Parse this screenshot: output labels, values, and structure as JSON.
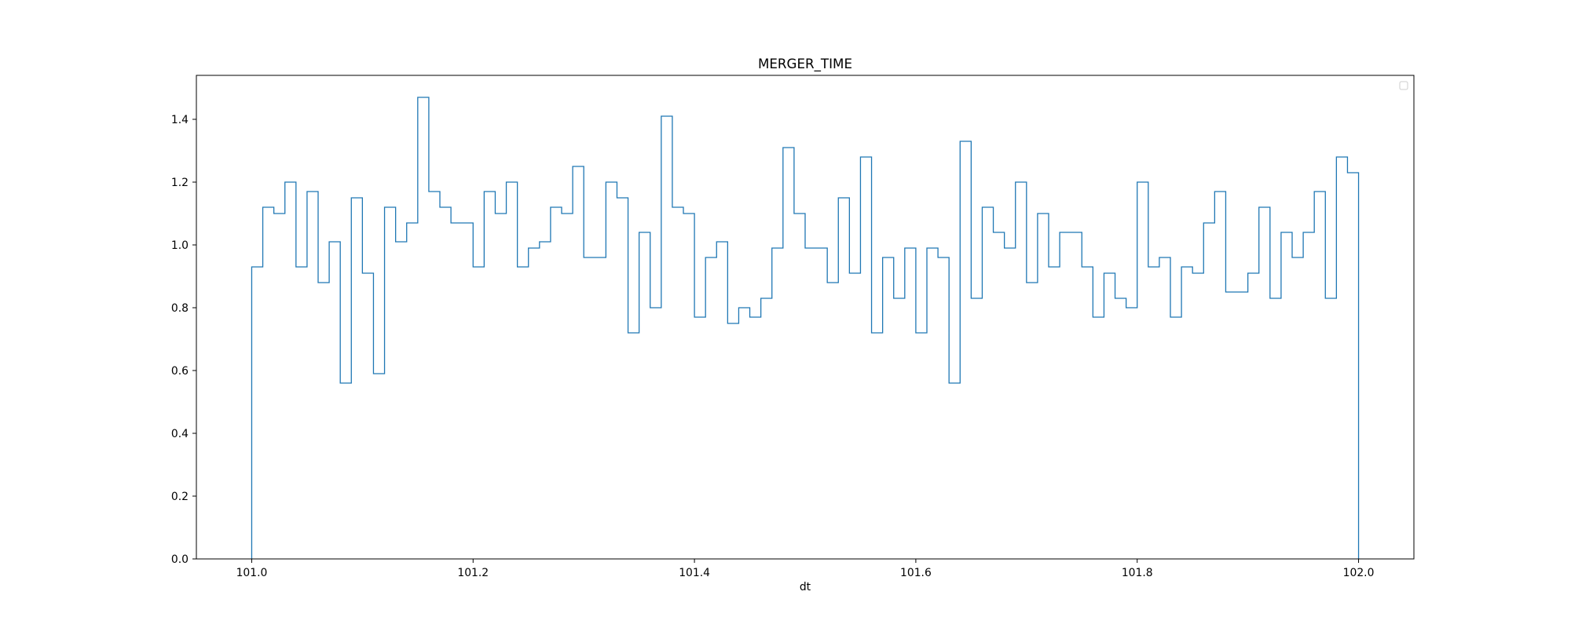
{
  "chart_data": {
    "type": "histogram-step",
    "title": "MERGER_TIME",
    "xlabel": "dt",
    "ylabel": "",
    "xlim": [
      100.95,
      102.05
    ],
    "ylim": [
      0.0,
      1.54
    ],
    "x_ticks": [
      {
        "value": 101.0,
        "label": "101.0"
      },
      {
        "value": 101.2,
        "label": "101.2"
      },
      {
        "value": 101.4,
        "label": "101.4"
      },
      {
        "value": 101.6,
        "label": "101.6"
      },
      {
        "value": 101.8,
        "label": "101.8"
      },
      {
        "value": 102.0,
        "label": "102.0"
      }
    ],
    "y_ticks": [
      {
        "value": 0.0,
        "label": "0.0"
      },
      {
        "value": 0.2,
        "label": "0.2"
      },
      {
        "value": 0.4,
        "label": "0.4"
      },
      {
        "value": 0.6,
        "label": "0.6"
      },
      {
        "value": 0.8,
        "label": "0.8"
      },
      {
        "value": 1.0,
        "label": "1.0"
      },
      {
        "value": 1.2,
        "label": "1.2"
      },
      {
        "value": 1.4,
        "label": "1.4"
      }
    ],
    "grid": false,
    "legend": {
      "placement": "upper right",
      "entries": []
    },
    "series_color": "#1f77b4",
    "bin_start": 101.0,
    "bin_end": 102.0,
    "bin_count": 100,
    "values": [
      0.93,
      1.12,
      1.1,
      1.2,
      0.93,
      1.17,
      0.88,
      1.01,
      0.56,
      1.15,
      0.91,
      0.59,
      1.12,
      1.01,
      1.07,
      1.47,
      1.17,
      1.12,
      1.07,
      1.07,
      0.93,
      1.17,
      1.1,
      1.2,
      0.93,
      0.99,
      1.01,
      1.12,
      1.1,
      1.25,
      0.96,
      0.96,
      1.2,
      1.15,
      0.72,
      1.04,
      0.8,
      1.41,
      1.12,
      1.1,
      0.77,
      0.96,
      1.01,
      0.75,
      0.8,
      0.77,
      0.83,
      0.99,
      1.31,
      1.1,
      0.99,
      0.99,
      0.88,
      1.15,
      0.91,
      1.28,
      0.72,
      0.96,
      0.83,
      0.99,
      0.72,
      0.99,
      0.96,
      0.56,
      1.33,
      0.83,
      1.12,
      1.04,
      0.99,
      1.2,
      0.88,
      1.1,
      0.93,
      1.04,
      1.04,
      0.93,
      0.77,
      0.91,
      0.83,
      0.8,
      1.2,
      0.93,
      0.96,
      0.77,
      0.93,
      0.91,
      1.07,
      1.17,
      0.85,
      0.85,
      0.91,
      1.12,
      0.83,
      1.04,
      0.96,
      1.04,
      1.17,
      0.83,
      1.28,
      1.23
    ]
  }
}
